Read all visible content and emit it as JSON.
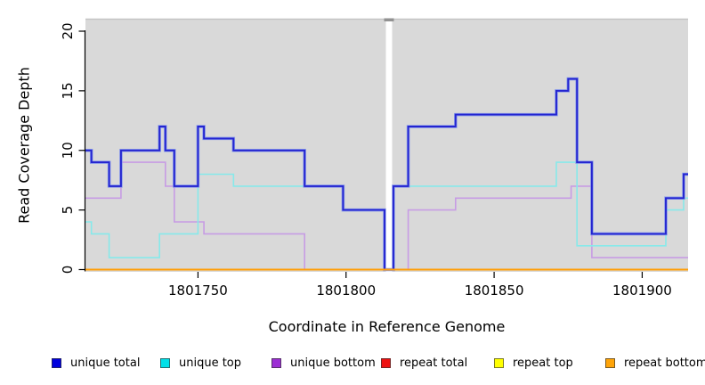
{
  "chart_data": {
    "type": "line",
    "subtype": "step",
    "title": "",
    "xlabel": "Coordinate in Reference Genome",
    "ylabel": "Read Coverage Depth",
    "xlim": [
      1801712,
      1801915.5
    ],
    "ylim": [
      0,
      21
    ],
    "x_ticks": [
      1801750,
      1801800,
      1801850,
      1801900
    ],
    "x_tick_labels": [
      "1801750",
      "1801800",
      "1801850",
      "1801900"
    ],
    "y_ticks": [
      0,
      5,
      10,
      15,
      20
    ],
    "y_tick_labels": [
      "0",
      "5",
      "10",
      "15",
      "20"
    ],
    "grid": false,
    "panel_bg": "#d9d9d9",
    "panel_top_edge_color": "#c4c4c4",
    "gap_region": {
      "x_start": 1801813,
      "x_end": 1801816,
      "fill": "#ffffff",
      "cap_color": "#929292"
    },
    "legend_position": "bottom",
    "series": [
      {
        "name": "repeat total",
        "line_color": "#dd0000",
        "width": 1.5,
        "steps": [
          [
            1801712,
            0
          ]
        ]
      },
      {
        "name": "repeat top",
        "line_color": "#ffff00",
        "width": 1.5,
        "steps": [
          [
            1801712,
            0
          ]
        ]
      },
      {
        "name": "unique bottom",
        "line_color": "#c79ce4",
        "width": 1.6,
        "steps": [
          [
            1801712,
            6
          ],
          [
            1801724,
            9
          ],
          [
            1801739,
            7
          ],
          [
            1801742,
            4
          ],
          [
            1801752,
            3
          ],
          [
            1801786,
            0
          ],
          [
            1801821,
            5
          ],
          [
            1801837,
            6
          ],
          [
            1801876,
            7
          ],
          [
            1801883,
            1
          ]
        ]
      },
      {
        "name": "unique top",
        "line_color": "#87e9ea",
        "width": 1.6,
        "steps": [
          [
            1801712,
            4
          ],
          [
            1801714,
            3
          ],
          [
            1801720,
            1
          ],
          [
            1801737,
            3
          ],
          [
            1801750,
            8
          ],
          [
            1801762,
            7
          ],
          [
            1801799,
            5
          ],
          [
            1801813,
            0
          ],
          [
            1801816,
            7
          ],
          [
            1801871,
            9
          ],
          [
            1801878,
            2
          ],
          [
            1801908,
            5
          ],
          [
            1801914,
            6
          ]
        ]
      },
      {
        "name": "unique total",
        "line_color": "#2424d0",
        "halo_color": "#8899ea",
        "width": 1.9,
        "steps": [
          [
            1801712,
            10
          ],
          [
            1801714,
            9
          ],
          [
            1801720,
            7
          ],
          [
            1801724,
            10
          ],
          [
            1801737,
            12
          ],
          [
            1801739,
            10
          ],
          [
            1801742,
            7
          ],
          [
            1801750,
            12
          ],
          [
            1801752,
            11
          ],
          [
            1801762,
            10
          ],
          [
            1801786,
            7
          ],
          [
            1801799,
            5
          ],
          [
            1801813,
            0
          ],
          [
            1801816,
            7
          ],
          [
            1801821,
            12
          ],
          [
            1801837,
            13
          ],
          [
            1801871,
            15
          ],
          [
            1801875,
            16
          ],
          [
            1801878,
            9
          ],
          [
            1801883,
            3
          ],
          [
            1801908,
            6
          ],
          [
            1801914,
            8
          ]
        ]
      },
      {
        "name": "repeat bottom",
        "line_color": "#ff9e08",
        "width": 2,
        "steps": [
          [
            1801712,
            0
          ]
        ]
      }
    ],
    "legend": [
      {
        "label": "unique total",
        "color": "#0000dd"
      },
      {
        "label": "unique top",
        "color": "#00e0e8"
      },
      {
        "label": "unique bottom",
        "color": "#9c2fd4"
      },
      {
        "label": "repeat total",
        "color": "#ee1111"
      },
      {
        "label": "repeat top",
        "color": "#ffff00"
      },
      {
        "label": "repeat bottom",
        "color": "#ffa408"
      }
    ]
  }
}
